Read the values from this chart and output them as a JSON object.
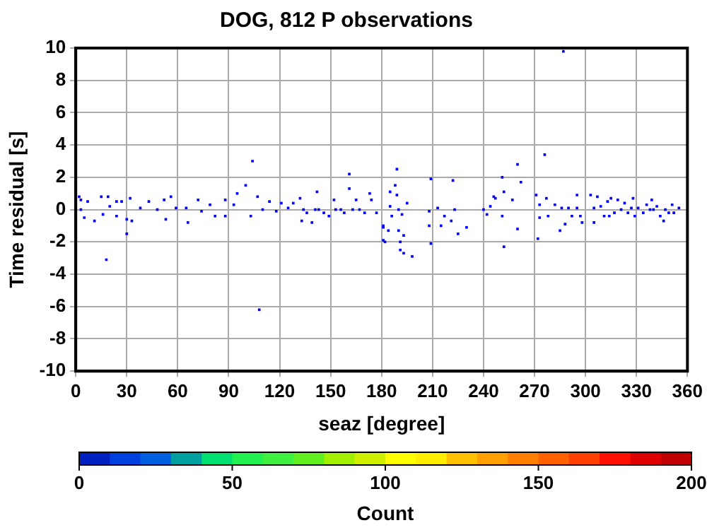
{
  "chart_data": {
    "type": "scatter",
    "title": "DOG, 812 P observations",
    "xlabel": "seaz [degree]",
    "ylabel": "Time residual [s]",
    "clabel": "Count",
    "clim": [
      0,
      200
    ],
    "cticks": [
      0,
      50,
      100,
      150,
      200
    ],
    "xlim": [
      0,
      360
    ],
    "xticks": [
      0,
      30,
      60,
      90,
      120,
      150,
      180,
      210,
      240,
      270,
      300,
      330,
      360
    ],
    "ylim": [
      -10,
      10
    ],
    "yticks": [
      -10,
      -8,
      -6,
      -4,
      -2,
      0,
      2,
      4,
      6,
      8,
      10
    ],
    "grid": true,
    "marker": "square",
    "series": [
      {
        "color": "#0000ff",
        "x": [
          2,
          3,
          3,
          5,
          7,
          11,
          15,
          16,
          18,
          19,
          20,
          24,
          24,
          27,
          30,
          30,
          32,
          33,
          38,
          43,
          48,
          52,
          53,
          56,
          59,
          66,
          65,
          72,
          74,
          79,
          82,
          88,
          88,
          93,
          95,
          100,
          104,
          103,
          107,
          108,
          110,
          114,
          118,
          121,
          125,
          128,
          132,
          133,
          134,
          136,
          139,
          141,
          142,
          143,
          146,
          149,
          152,
          153,
          156,
          158,
          161,
          161,
          163,
          165,
          167,
          170,
          173,
          174,
          177,
          181,
          181,
          181,
          182,
          184,
          185,
          185,
          186,
          188,
          189,
          189,
          190,
          190,
          191,
          191,
          192,
          193,
          193,
          195,
          198,
          208,
          208,
          209,
          209,
          213,
          215,
          217,
          221,
          222,
          223,
          225,
          230,
          240,
          242,
          244,
          246,
          247,
          251,
          251,
          252,
          252,
          257,
          260,
          260,
          262,
          271,
          272,
          273,
          273,
          276,
          277,
          278,
          282,
          285,
          286,
          287,
          288,
          290,
          292,
          295,
          295,
          297,
          298,
          303,
          305,
          305,
          307,
          309,
          311,
          313,
          314,
          315,
          317,
          319,
          321,
          323,
          325,
          327,
          328,
          329,
          331,
          334,
          336,
          338,
          339,
          340,
          342,
          344,
          346,
          347,
          349,
          351,
          352,
          355
        ],
        "values": [
          0.8,
          0.6,
          0,
          -0.5,
          0.5,
          -0.7,
          0.8,
          -0.3,
          -3.1,
          0.8,
          0.2,
          0.5,
          -0.4,
          0.5,
          -0.6,
          -1.5,
          0.7,
          -0.7,
          0.1,
          0.5,
          0,
          0.6,
          -0.6,
          0.8,
          0.1,
          -0.8,
          0.1,
          0.6,
          -0.1,
          0.3,
          -0.4,
          0.6,
          -0.4,
          0.3,
          1.0,
          1.5,
          3.0,
          -0.4,
          0.8,
          -6.2,
          0,
          0.5,
          -0.1,
          0.4,
          0.1,
          0.4,
          0.7,
          -0.7,
          0,
          -0.2,
          -0.8,
          0,
          1.1,
          0,
          -0.2,
          -0.4,
          0.6,
          0,
          0,
          -0.2,
          1.3,
          2.2,
          0,
          0.6,
          0,
          -0.2,
          1.0,
          0.6,
          -0.2,
          -1.0,
          -1.9,
          -1.1,
          -2.0,
          -1.3,
          0.2,
          1.1,
          -0.4,
          1.5,
          2.5,
          0.9,
          0,
          -1.3,
          -2.0,
          -2.5,
          -0.3,
          -1.6,
          -2.7,
          0.4,
          -2.9,
          -0.1,
          -1.0,
          1.9,
          -2.1,
          0.1,
          -1.0,
          -0.4,
          -0.7,
          1.8,
          0,
          -1.5,
          -1.1,
          0,
          -0.3,
          0.2,
          0.8,
          0.7,
          2.0,
          -0.4,
          -2.3,
          1.1,
          0.6,
          2.8,
          -1.2,
          1.7,
          0.9,
          -1.8,
          0.3,
          -0.5,
          3.4,
          0.7,
          -0.4,
          0.3,
          -1.3,
          0.1,
          9.8,
          -0.9,
          0.1,
          -0.4,
          0.9,
          0.1,
          -0.4,
          -0.8,
          0.9,
          -0.8,
          0.1,
          0.8,
          0.2,
          -0.4,
          0.5,
          -0.4,
          0.7,
          -0.2,
          0.6,
          0,
          0.4,
          -0.2,
          0.1,
          0.7,
          -0.4,
          0.1,
          -0.2,
          0.3,
          0,
          0.6,
          0,
          0.2,
          -0.4,
          -0.7,
          0,
          -0.2,
          0.3,
          -0.2,
          0.1
        ]
      }
    ]
  }
}
